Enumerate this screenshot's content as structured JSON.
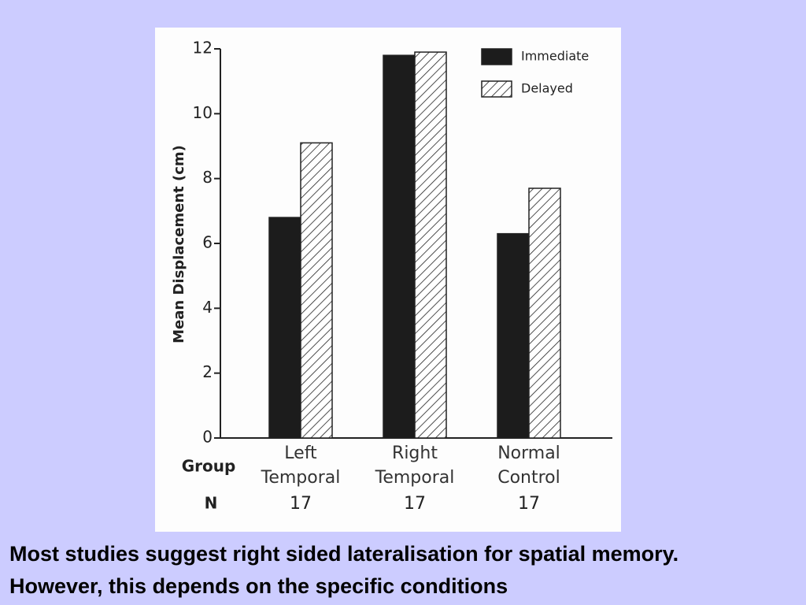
{
  "chart_data": {
    "type": "bar",
    "ylabel": "Mean Displacement (cm)",
    "categories": [
      "Left Temporal",
      "Right Temporal",
      "Normal Control"
    ],
    "group_label": "Group",
    "n_label": "N",
    "n_values": [
      17,
      17,
      17
    ],
    "series": [
      {
        "name": "Immediate",
        "color": "#1c1c1c",
        "values": [
          6.8,
          11.8,
          6.3
        ]
      },
      {
        "name": "Delayed",
        "color": "#ffffff",
        "pattern": "hatch",
        "values": [
          9.1,
          11.9,
          7.7
        ]
      }
    ],
    "ylim": [
      0,
      12
    ],
    "yticks": [
      0,
      2,
      4,
      6,
      8,
      10,
      12
    ],
    "legend": "upper right"
  },
  "caption": "Most studies suggest right sided lateralisation for spatial memory. However, this depends on the specific conditions"
}
